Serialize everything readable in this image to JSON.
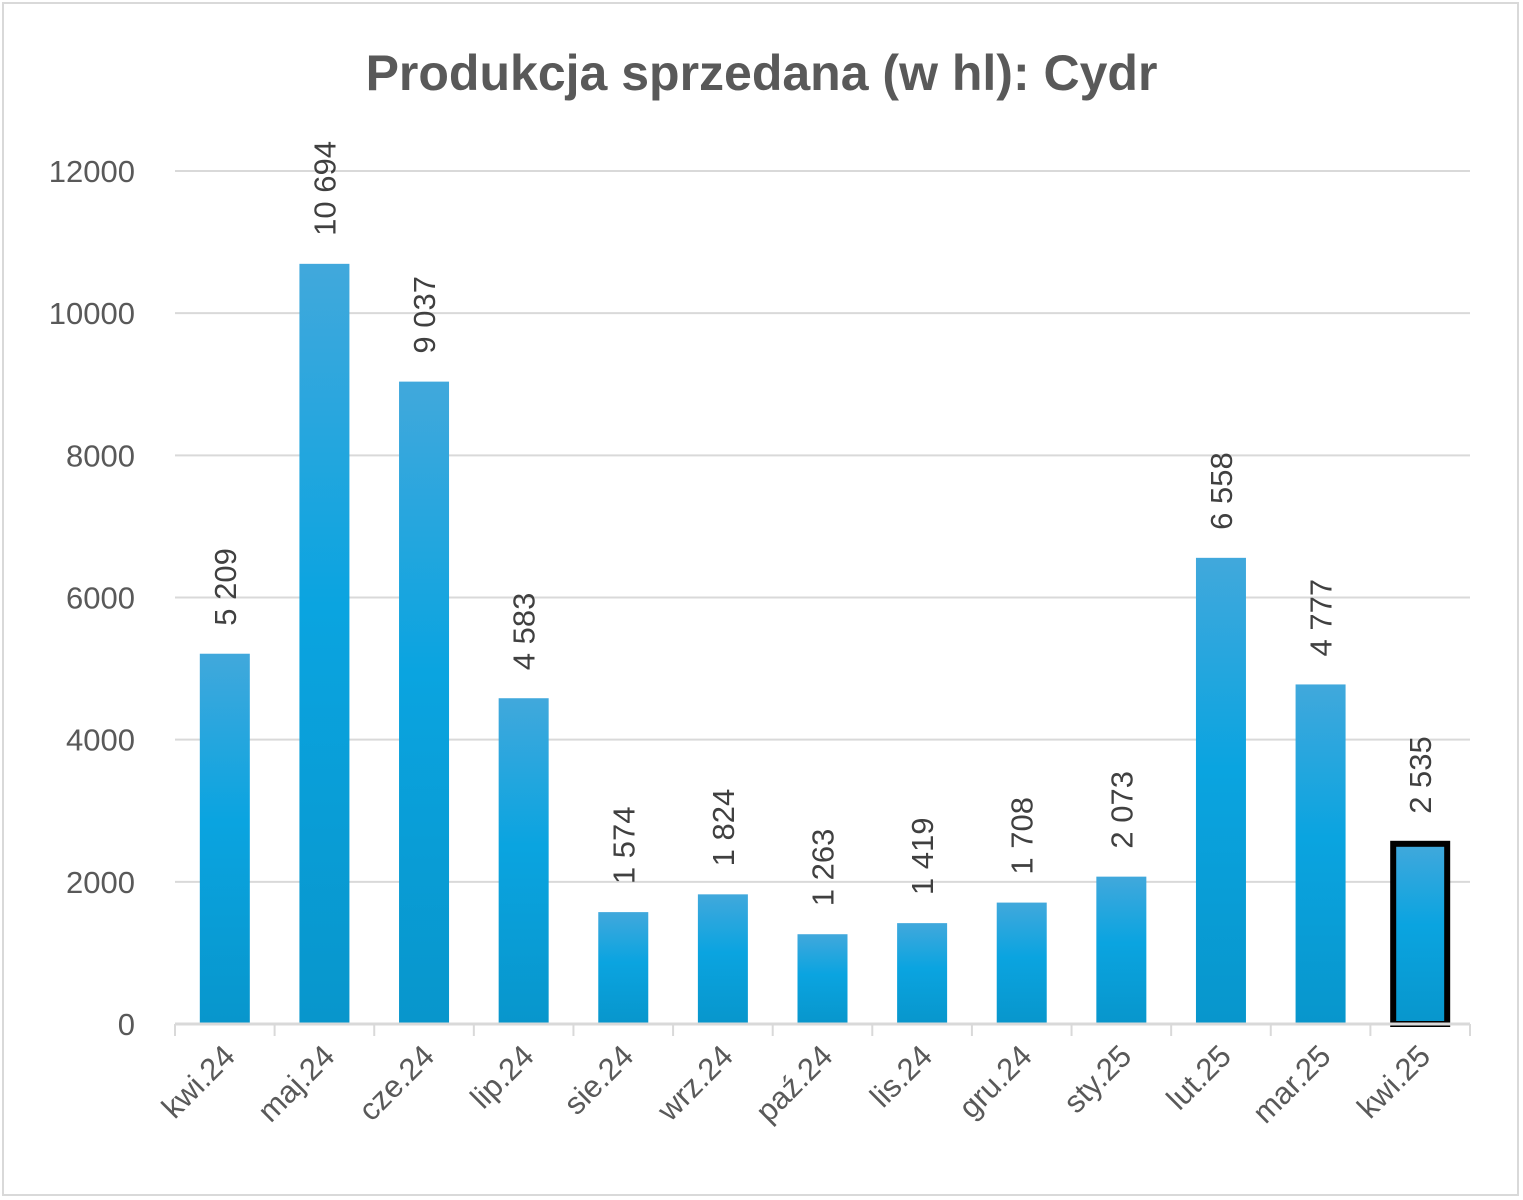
{
  "chart_data": {
    "type": "bar",
    "title": "Produkcja sprzedana (w hl): Cydr",
    "xlabel": "",
    "ylabel": "",
    "ylim": [
      0,
      12000
    ],
    "yticks": [
      "0",
      "2000",
      "4000",
      "6000",
      "8000",
      "10000",
      "12000"
    ],
    "grid": true,
    "legend": "none",
    "categories": [
      "kwi.24",
      "maj.24",
      "cze.24",
      "lip.24",
      "sie.24",
      "wrz.24",
      "paź.24",
      "lis.24",
      "gru.24",
      "sty.25",
      "lut.25",
      "mar.25",
      "kwi.25"
    ],
    "values": [
      5209,
      10694,
      9037,
      4583,
      1574,
      1824,
      1263,
      1419,
      1708,
      2073,
      6558,
      4777,
      2535
    ],
    "value_labels": [
      "5 209",
      "10 694",
      "9 037",
      "4 583",
      "1 574",
      "1 824",
      "1 263",
      "1 419",
      "1 708",
      "2 073",
      "6 558",
      "4 777",
      "2 535"
    ],
    "highlighted_category": "kwi.25",
    "colors": {
      "bar_top": "#41a8dc",
      "bar_mid": "#0aa4e0",
      "bar_bottom": "#0896cc",
      "grid": "#d9d9d9",
      "axis": "#d9d9d9",
      "highlight_border": "#000000"
    }
  }
}
